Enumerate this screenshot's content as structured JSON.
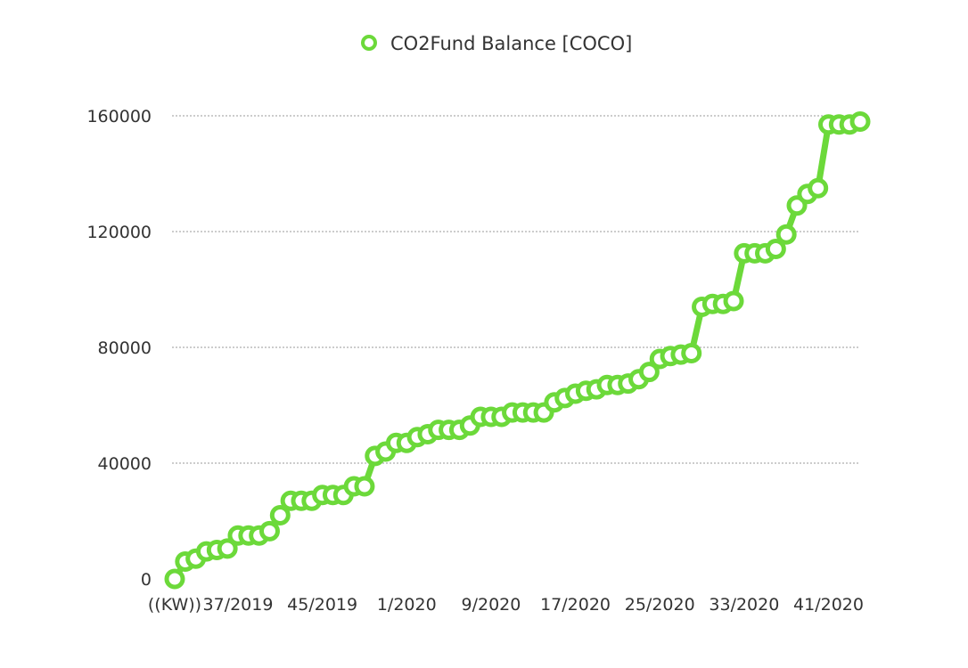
{
  "chart_data": {
    "type": "line",
    "title": "",
    "xlabel": "",
    "ylabel": "",
    "ylim": [
      0,
      160000
    ],
    "yticks": [
      0,
      40000,
      80000,
      120000,
      160000
    ],
    "grid": true,
    "legend_position": "top",
    "x_tick_labels": [
      {
        "index": 0,
        "label": "((KW))"
      },
      {
        "index": 6,
        "label": "37/2019"
      },
      {
        "index": 14,
        "label": "45/2019"
      },
      {
        "index": 22,
        "label": "1/2020"
      },
      {
        "index": 30,
        "label": "9/2020"
      },
      {
        "index": 38,
        "label": "17/2020"
      },
      {
        "index": 46,
        "label": "25/2020"
      },
      {
        "index": 54,
        "label": "33/2020"
      },
      {
        "index": 62,
        "label": "41/2020"
      }
    ],
    "series": [
      {
        "name": "CO2Fund Balance [COCO]",
        "color": "#6cd93a",
        "values": [
          0,
          6000,
          7000,
          9500,
          10000,
          10500,
          15000,
          15000,
          15000,
          16500,
          22000,
          27000,
          27000,
          27000,
          29000,
          29000,
          29000,
          32000,
          32000,
          42500,
          44000,
          47000,
          47000,
          49000,
          50000,
          51500,
          51500,
          51500,
          53000,
          56000,
          56000,
          56000,
          57500,
          57500,
          57500,
          57500,
          61000,
          62500,
          64000,
          65000,
          65500,
          67000,
          67000,
          67500,
          69000,
          71500,
          76000,
          77000,
          77500,
          78000,
          94000,
          95000,
          95000,
          96000,
          112500,
          112500,
          112500,
          114000,
          119000,
          129000,
          133000,
          135000,
          157000,
          157000,
          157000,
          158000
        ]
      }
    ]
  }
}
